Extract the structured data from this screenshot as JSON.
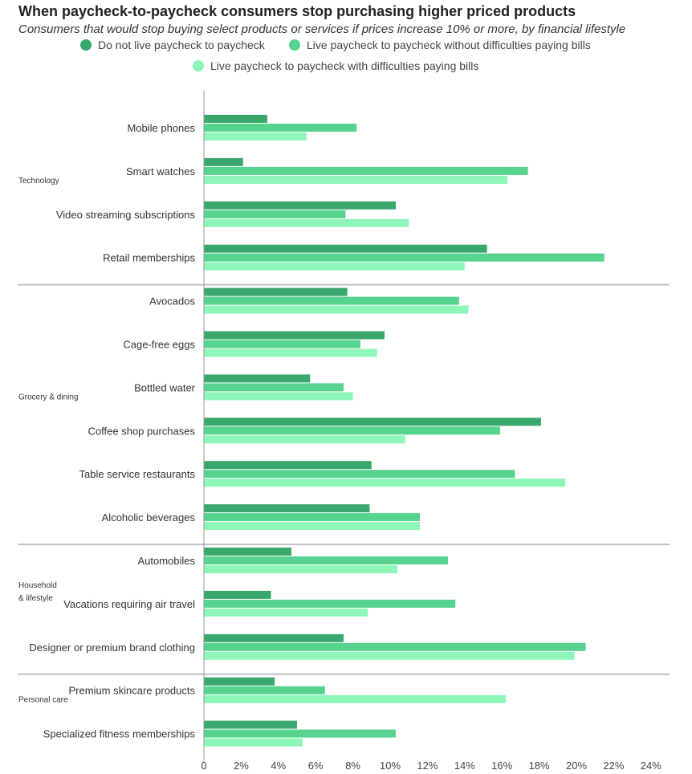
{
  "chart_data": {
    "type": "bar",
    "orientation": "horizontal",
    "title": "When paycheck-to-paycheck consumers stop purchasing higher priced products",
    "subtitle": "Consumers that would stop buying select products or services if prices increase 10% or more, by financial lifestyle",
    "xlim": [
      0,
      24
    ],
    "x_ticks": [
      0,
      2,
      4,
      6,
      8,
      10,
      12,
      14,
      16,
      18,
      20,
      22,
      24
    ],
    "x_tick_labels": [
      "0",
      "2%",
      "4%",
      "6%",
      "8%",
      "10%",
      "12%",
      "14%",
      "16%",
      "18%",
      "20%",
      "22%",
      "24%"
    ],
    "series": [
      {
        "name": "Do not live paycheck to paycheck",
        "color": "#3aa76d"
      },
      {
        "name": "Live paycheck to paycheck without difficulties paying bills",
        "color": "#56d48f"
      },
      {
        "name": "Live paycheck to paycheck with difficulties paying bills",
        "color": "#8ef6b9"
      }
    ],
    "groups": [
      {
        "name": "Technology",
        "categories": [
          {
            "label": "Mobile phones",
            "values": [
              3.4,
              8.2,
              5.5
            ]
          },
          {
            "label": "Smart watches",
            "values": [
              2.1,
              17.4,
              16.3
            ]
          },
          {
            "label": "Video streaming subscriptions",
            "values": [
              10.3,
              7.6,
              11.0
            ]
          },
          {
            "label": "Retail memberships",
            "values": [
              15.2,
              21.5,
              14.0
            ]
          }
        ]
      },
      {
        "name": "Grocery & dining",
        "categories": [
          {
            "label": "Avocados",
            "values": [
              7.7,
              13.7,
              14.2
            ]
          },
          {
            "label": "Cage-free eggs",
            "values": [
              9.7,
              8.4,
              9.3
            ]
          },
          {
            "label": "Bottled water",
            "values": [
              5.7,
              7.5,
              8.0
            ]
          },
          {
            "label": "Coffee shop purchases",
            "values": [
              18.1,
              15.9,
              10.8
            ]
          },
          {
            "label": "Table service restaurants",
            "values": [
              9.0,
              16.7,
              19.4
            ]
          },
          {
            "label": "Alcoholic beverages",
            "values": [
              8.9,
              11.6,
              11.6
            ]
          }
        ]
      },
      {
        "name": "Household & lifestyle",
        "name_lines": [
          "Household",
          "& lifestyle"
        ],
        "categories": [
          {
            "label": "Automobiles",
            "values": [
              4.7,
              13.1,
              10.4
            ]
          },
          {
            "label": "Vacations requiring air travel",
            "values": [
              3.6,
              13.5,
              8.8
            ]
          },
          {
            "label": "Designer or premium brand clothing",
            "values": [
              7.5,
              20.5,
              19.9
            ]
          }
        ]
      },
      {
        "name": "Personal care",
        "categories": [
          {
            "label": "Premium skincare products",
            "values": [
              3.8,
              6.5,
              16.2
            ]
          },
          {
            "label": "Specialized fitness memberships",
            "values": [
              5.0,
              10.3,
              5.3
            ]
          }
        ]
      }
    ]
  }
}
